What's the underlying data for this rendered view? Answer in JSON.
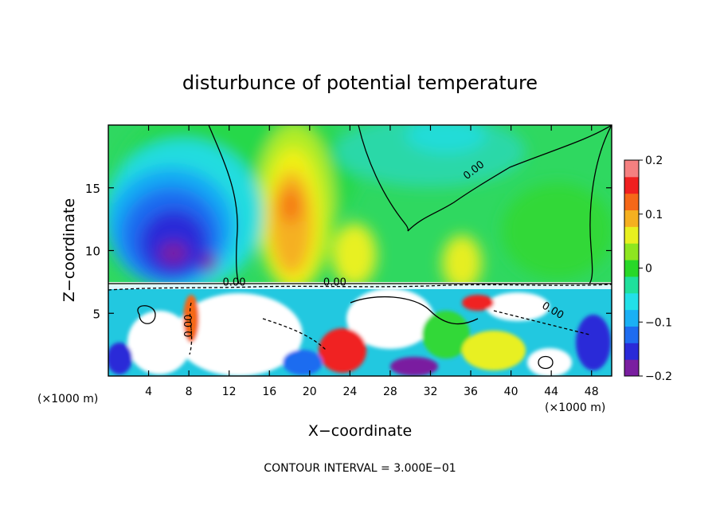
{
  "chart_data": {
    "type": "heatmap",
    "title": "disturbunce of potential temperature",
    "xlabel": "X−coordinate",
    "ylabel": "Z−coordinate",
    "x_unit_left": "(×1000 m)",
    "x_unit_right": "(×1000 m)",
    "xlim": [
      0,
      50
    ],
    "ylim": [
      0,
      20
    ],
    "x_ticks": [
      4,
      8,
      12,
      16,
      20,
      24,
      28,
      32,
      36,
      40,
      44,
      48
    ],
    "y_ticks": [
      5,
      10,
      15
    ],
    "colorbar": {
      "range": [
        -0.2,
        0.2
      ],
      "tick_values": [
        0.2,
        0.1,
        0,
        -0.1,
        -0.2
      ],
      "tick_labels": [
        "0.2",
        "0.1",
        "0",
        "−0.1",
        "−0.2"
      ]
    },
    "contour_labels": [
      {
        "text": "0.00",
        "x": 36.5,
        "y": 16.2,
        "angle": -38
      },
      {
        "text": "0.00",
        "x": 12.5,
        "y": 7.2,
        "angle": 0
      },
      {
        "text": "0.00",
        "x": 22.5,
        "y": 7.2,
        "angle": 0
      },
      {
        "text": "0.00",
        "x": 8.3,
        "y": 4.0,
        "angle": -90
      },
      {
        "text": "0.00",
        "x": 44.0,
        "y": 5.0,
        "angle": 30
      }
    ],
    "footer": "CONTOUR INTERVAL = 3.000E−01",
    "grid": false
  },
  "colors": {
    "colorbar_stops": [
      "#7a1fa0",
      "#2a2ad8",
      "#1e6cf0",
      "#1ab0f5",
      "#22e0e8",
      "#1fe09c",
      "#28d828",
      "#8ee620",
      "#e8f020",
      "#f5b020",
      "#f56818",
      "#f02020",
      "#f58080"
    ]
  }
}
